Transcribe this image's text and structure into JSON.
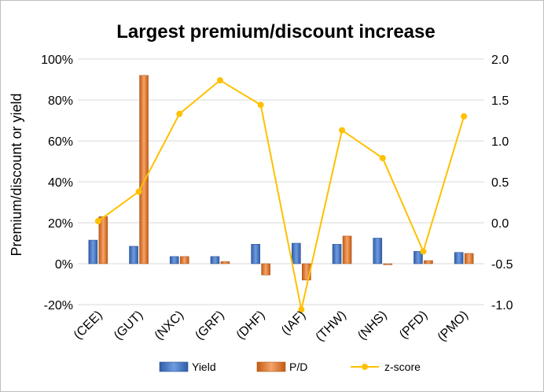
{
  "chart_data": {
    "type": "bar",
    "title": "Largest premium/discount increase",
    "xlabel": "",
    "ylabel": "Premium/discount or yield",
    "categories": [
      "(CEE)",
      "(GUT)",
      "(NXC)",
      "(GRF)",
      "(DHF)",
      "(IAF)",
      "(THW)",
      "(NHS)",
      "(PFD)",
      "(PMO)"
    ],
    "ylim": [
      -20,
      100
    ],
    "y_ticks": [
      -20,
      0,
      20,
      40,
      60,
      80,
      100
    ],
    "y_tick_labels": [
      "-20%",
      "0%",
      "20%",
      "40%",
      "60%",
      "80%",
      "100%"
    ],
    "y2lim": [
      -1.0,
      2.0
    ],
    "y2_ticks": [
      -1.0,
      -0.5,
      0.0,
      0.5,
      1.0,
      1.5,
      2.0
    ],
    "y2_tick_labels": [
      "-1.0",
      "-0.5",
      "0.0",
      "0.5",
      "1.0",
      "1.5",
      "2.0"
    ],
    "grid": true,
    "legend_position": "bottom",
    "series": [
      {
        "name": "Yield",
        "type": "bar",
        "axis": "left",
        "color": "#4472c4",
        "values": [
          11.5,
          8.5,
          3.5,
          3.5,
          9.5,
          10.0,
          9.5,
          12.5,
          6.0,
          5.5
        ]
      },
      {
        "name": "P/D",
        "type": "bar",
        "axis": "left",
        "color": "#ed7d31",
        "values": [
          23.0,
          92.0,
          3.5,
          1.0,
          -5.5,
          -8.0,
          13.5,
          -0.5,
          1.5,
          5.0
        ]
      },
      {
        "name": "z-score",
        "type": "line",
        "axis": "right",
        "color": "#ffc000",
        "values": [
          0.02,
          0.38,
          1.33,
          1.74,
          1.44,
          -1.06,
          1.13,
          0.79,
          -0.35,
          1.3
        ]
      }
    ]
  }
}
